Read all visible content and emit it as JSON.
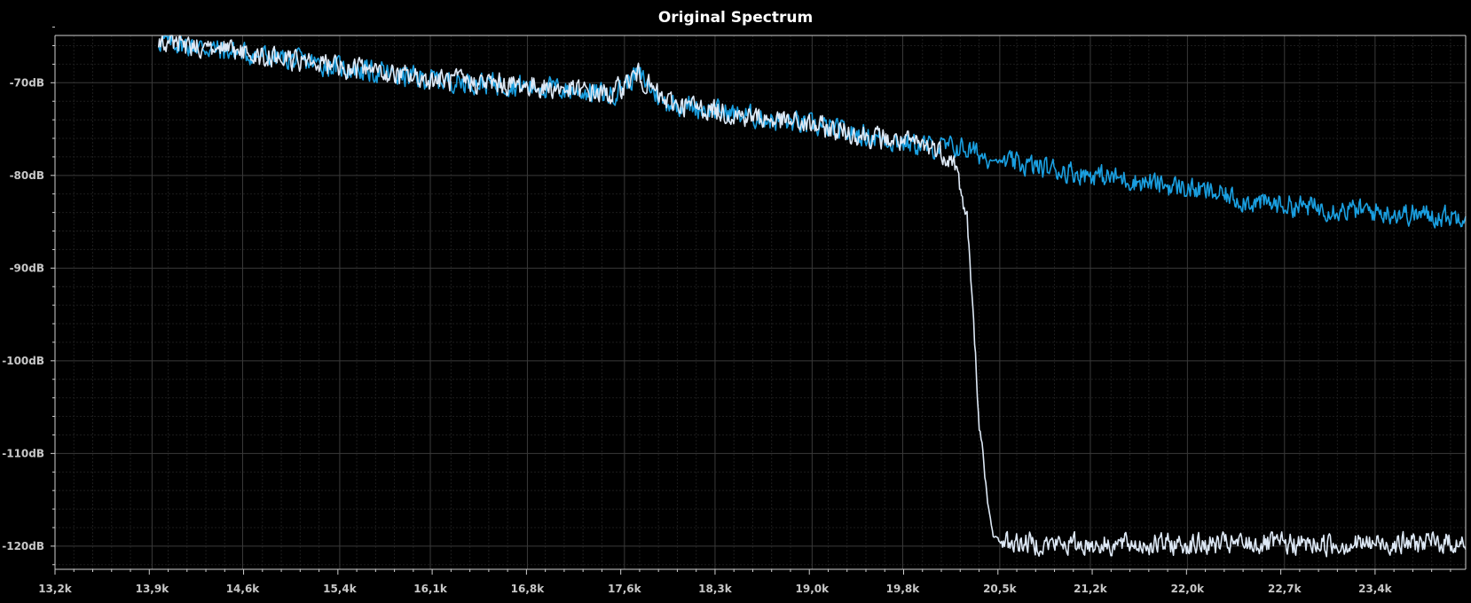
{
  "chart_data": {
    "type": "line",
    "title": "Original Spectrum",
    "xlim": [
      13200,
      24100
    ],
    "ylim": [
      -122.5,
      -64.9
    ],
    "grid": true,
    "x_ticks": [
      13200,
      13950,
      14650,
      15400,
      16100,
      16850,
      17600,
      18300,
      19050,
      19750,
      20500,
      21200,
      21950,
      22700,
      23400
    ],
    "x_tick_labels": [
      "13,2k",
      "13,9k",
      "14,6k",
      "15,4k",
      "16,1k",
      "16,8k",
      "17,6k",
      "18,3k",
      "19,0k",
      "19,8k",
      "20,5k",
      "21,2k",
      "22,0k",
      "22,7k",
      "23,4k"
    ],
    "y_ticks": [
      -70,
      -80,
      -90,
      -100,
      -110,
      -120
    ],
    "y_tick_labels": [
      "-70dB",
      "-80dB",
      "-90dB",
      "-100dB",
      "-110dB",
      "-120dB"
    ],
    "series": [
      {
        "color": "#1a9fe0",
        "x": [
          14000,
          14500,
          15000,
          15500,
          16000,
          16500,
          17000,
          17500,
          17700,
          17900,
          18500,
          19000,
          19500,
          20000,
          20200,
          20500,
          21000,
          21500,
          22000,
          22500,
          23000,
          23500,
          24000,
          24100
        ],
        "y": [
          -65.5,
          -66.5,
          -67.5,
          -68.5,
          -69.5,
          -70.0,
          -70.5,
          -71.3,
          -69.0,
          -72.0,
          -73.5,
          -74.5,
          -75.8,
          -77.0,
          -77.0,
          -78.5,
          -79.5,
          -80.5,
          -81.5,
          -83.0,
          -83.5,
          -84.0,
          -84.5,
          -84.0
        ]
      },
      {
        "color": "#dde8f5",
        "x": [
          14000,
          14500,
          15000,
          15500,
          16000,
          16500,
          17000,
          17500,
          17700,
          17900,
          18500,
          19000,
          19500,
          20000,
          20150,
          20250,
          20300,
          20350,
          20400,
          20450,
          20500,
          20600,
          21000,
          21500,
          22000,
          22500,
          23000,
          23500,
          24000,
          24100
        ],
        "y": [
          -65.5,
          -66.5,
          -67.5,
          -68.5,
          -69.5,
          -70.0,
          -70.5,
          -71.3,
          -69.0,
          -72.0,
          -73.5,
          -74.5,
          -75.8,
          -77.0,
          -78.5,
          -85.0,
          -97.0,
          -108.0,
          -115.0,
          -118.8,
          -119.5,
          -119.6,
          -119.8,
          -119.8,
          -119.8,
          -119.8,
          -119.8,
          -119.7,
          -119.6,
          -119.9
        ]
      }
    ]
  }
}
